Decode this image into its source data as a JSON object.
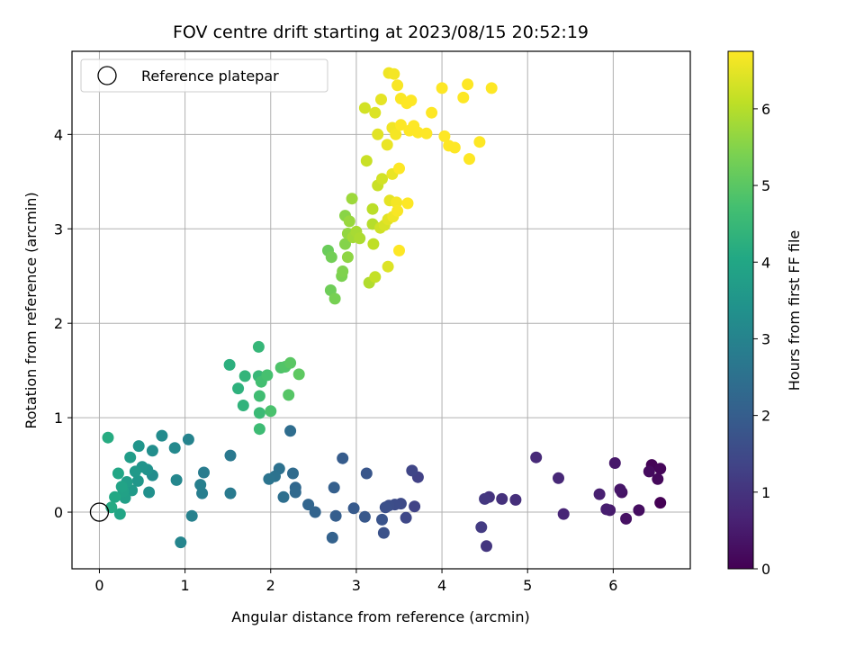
{
  "chart_data": {
    "type": "scatter",
    "title": "FOV centre drift starting at 2023/08/15 20:52:19",
    "xlabel": "Angular distance from reference (arcmin)",
    "ylabel": "Rotation from reference (arcmin)",
    "xlim": [
      -0.32,
      6.9
    ],
    "ylim": [
      -0.6,
      4.88
    ],
    "xticks": [
      0,
      1,
      2,
      3,
      4,
      5,
      6
    ],
    "yticks": [
      0,
      1,
      2,
      3,
      4
    ],
    "grid": true,
    "legend": {
      "placement": "top-left",
      "entries": [
        "Reference platepar"
      ]
    },
    "reference_point": {
      "x": 0,
      "y": 0
    },
    "colorbar": {
      "label": "Hours from first FF file",
      "range": [
        0,
        6.75
      ],
      "ticks": [
        0,
        1,
        2,
        3,
        4,
        5,
        6
      ],
      "colormap": "viridis"
    },
    "points": [
      [
        6.55,
        0.1,
        0.0
      ],
      [
        6.45,
        0.5,
        0.05
      ],
      [
        6.55,
        0.46,
        0.1
      ],
      [
        6.52,
        0.35,
        0.15
      ],
      [
        6.42,
        0.43,
        0.2
      ],
      [
        6.3,
        0.02,
        0.25
      ],
      [
        6.15,
        -0.07,
        0.3
      ],
      [
        6.1,
        0.21,
        0.35
      ],
      [
        6.08,
        0.24,
        0.4
      ],
      [
        6.02,
        0.52,
        0.45
      ],
      [
        5.96,
        0.02,
        0.5
      ],
      [
        5.92,
        0.03,
        0.55
      ],
      [
        5.84,
        0.19,
        0.6
      ],
      [
        5.42,
        -0.02,
        0.7
      ],
      [
        5.36,
        0.36,
        0.75
      ],
      [
        5.1,
        0.58,
        0.8
      ],
      [
        4.86,
        0.13,
        0.9
      ],
      [
        4.7,
        0.14,
        0.95
      ],
      [
        4.55,
        0.16,
        1.0
      ],
      [
        4.52,
        -0.36,
        1.05
      ],
      [
        4.5,
        0.14,
        1.1
      ],
      [
        4.46,
        -0.16,
        1.15
      ],
      [
        3.72,
        0.37,
        1.3
      ],
      [
        3.68,
        0.06,
        1.35
      ],
      [
        3.65,
        0.44,
        1.4
      ],
      [
        3.58,
        -0.06,
        1.45
      ],
      [
        3.52,
        0.09,
        1.5
      ],
      [
        3.45,
        0.08,
        1.55
      ],
      [
        3.38,
        0.07,
        1.6
      ],
      [
        3.34,
        0.05,
        1.65
      ],
      [
        3.32,
        -0.22,
        1.7
      ],
      [
        3.3,
        -0.08,
        1.75
      ],
      [
        3.12,
        0.41,
        1.8
      ],
      [
        3.1,
        -0.05,
        1.85
      ],
      [
        2.97,
        0.04,
        1.9
      ],
      [
        2.84,
        0.57,
        1.95
      ],
      [
        2.76,
        -0.04,
        2.0
      ],
      [
        2.74,
        0.26,
        2.05
      ],
      [
        2.72,
        -0.27,
        2.1
      ],
      [
        2.52,
        0.0,
        2.15
      ],
      [
        2.44,
        0.08,
        2.2
      ],
      [
        2.29,
        0.26,
        2.25
      ],
      [
        2.29,
        0.21,
        2.3
      ],
      [
        2.26,
        0.41,
        2.35
      ],
      [
        2.23,
        0.86,
        2.4
      ],
      [
        2.15,
        0.16,
        2.45
      ],
      [
        2.1,
        0.46,
        2.5
      ],
      [
        2.05,
        0.38,
        2.55
      ],
      [
        1.98,
        0.35,
        2.6
      ],
      [
        1.53,
        0.6,
        2.7
      ],
      [
        1.53,
        0.2,
        2.75
      ],
      [
        1.22,
        0.42,
        2.8
      ],
      [
        1.2,
        0.2,
        2.85
      ],
      [
        1.18,
        0.29,
        2.9
      ],
      [
        1.08,
        -0.04,
        2.95
      ],
      [
        1.04,
        0.77,
        3.0
      ],
      [
        0.95,
        -0.32,
        3.05
      ],
      [
        0.9,
        0.34,
        3.1
      ],
      [
        0.88,
        0.68,
        3.15
      ],
      [
        0.73,
        0.81,
        3.2
      ],
      [
        0.62,
        0.39,
        3.25
      ],
      [
        0.62,
        0.65,
        3.3
      ],
      [
        0.58,
        0.21,
        3.35
      ],
      [
        0.56,
        0.45,
        3.4
      ],
      [
        0.5,
        0.48,
        3.45
      ],
      [
        0.46,
        0.7,
        3.5
      ],
      [
        0.45,
        0.33,
        3.55
      ],
      [
        0.42,
        0.43,
        3.6
      ],
      [
        0.38,
        0.23,
        3.65
      ],
      [
        0.36,
        0.58,
        3.7
      ],
      [
        0.32,
        0.32,
        3.75
      ],
      [
        0.3,
        0.15,
        3.8
      ],
      [
        0.28,
        0.22,
        3.85
      ],
      [
        0.26,
        0.27,
        3.9
      ],
      [
        0.24,
        -0.02,
        3.95
      ],
      [
        0.22,
        0.41,
        4.0
      ],
      [
        0.18,
        0.16,
        4.05
      ],
      [
        0.14,
        0.05,
        4.1
      ],
      [
        0.1,
        0.79,
        4.15
      ],
      [
        1.52,
        1.56,
        4.25
      ],
      [
        1.62,
        1.31,
        4.3
      ],
      [
        1.68,
        1.13,
        4.35
      ],
      [
        1.7,
        1.44,
        4.4
      ],
      [
        1.86,
        1.75,
        4.45
      ],
      [
        1.86,
        1.44,
        4.5
      ],
      [
        1.87,
        1.05,
        4.55
      ],
      [
        1.87,
        0.88,
        4.6
      ],
      [
        1.87,
        1.23,
        4.65
      ],
      [
        1.89,
        1.38,
        4.7
      ],
      [
        1.96,
        1.45,
        4.75
      ],
      [
        2.0,
        1.07,
        4.8
      ],
      [
        2.12,
        1.53,
        4.85
      ],
      [
        2.17,
        1.54,
        4.9
      ],
      [
        2.21,
        1.24,
        4.95
      ],
      [
        2.23,
        1.58,
        5.0
      ],
      [
        2.33,
        1.46,
        5.05
      ],
      [
        2.67,
        2.77,
        5.2
      ],
      [
        2.7,
        2.35,
        5.25
      ],
      [
        2.71,
        2.7,
        5.3
      ],
      [
        2.75,
        2.26,
        5.35
      ],
      [
        2.83,
        2.5,
        5.4
      ],
      [
        2.84,
        2.55,
        5.45
      ],
      [
        2.87,
        2.84,
        5.5
      ],
      [
        2.87,
        3.14,
        5.55
      ],
      [
        2.9,
        2.7,
        5.6
      ],
      [
        2.9,
        2.95,
        5.65
      ],
      [
        2.92,
        3.08,
        5.7
      ],
      [
        2.95,
        3.32,
        5.75
      ],
      [
        2.96,
        2.91,
        5.8
      ],
      [
        3.0,
        2.97,
        5.85
      ],
      [
        3.04,
        2.9,
        5.9
      ],
      [
        3.15,
        2.43,
        5.95
      ],
      [
        3.19,
        3.05,
        6.0
      ],
      [
        3.19,
        3.21,
        6.05
      ],
      [
        3.2,
        2.84,
        6.1
      ],
      [
        3.22,
        2.49,
        6.15
      ],
      [
        3.25,
        3.46,
        6.2
      ],
      [
        3.28,
        3.01,
        6.25
      ],
      [
        3.3,
        3.53,
        6.3
      ],
      [
        3.33,
        3.04,
        6.35
      ],
      [
        3.37,
        2.6,
        6.4
      ],
      [
        3.37,
        3.1,
        6.45
      ],
      [
        3.39,
        3.3,
        6.5
      ],
      [
        3.42,
        3.58,
        6.55
      ],
      [
        3.43,
        3.13,
        6.6
      ],
      [
        3.47,
        3.28,
        6.65
      ],
      [
        3.48,
        3.19,
        6.7
      ],
      [
        3.5,
        2.77,
        6.75
      ],
      [
        3.5,
        3.64,
        6.8
      ],
      [
        3.6,
        3.27,
        6.85
      ],
      [
        3.12,
        3.72,
        6.2
      ],
      [
        3.1,
        4.28,
        6.3
      ],
      [
        3.22,
        4.23,
        6.4
      ],
      [
        3.25,
        4.0,
        6.45
      ],
      [
        3.29,
        4.37,
        6.5
      ],
      [
        3.36,
        3.89,
        6.55
      ],
      [
        3.38,
        4.65,
        6.6
      ],
      [
        3.42,
        4.07,
        6.62
      ],
      [
        3.44,
        4.64,
        6.65
      ],
      [
        3.46,
        4.0,
        6.67
      ],
      [
        3.48,
        4.52,
        6.7
      ],
      [
        3.52,
        4.38,
        6.72
      ],
      [
        3.52,
        4.1,
        6.74
      ],
      [
        3.59,
        4.33,
        6.75
      ],
      [
        3.62,
        4.04,
        6.76
      ],
      [
        3.64,
        4.36,
        6.77
      ],
      [
        3.67,
        4.09,
        6.78
      ],
      [
        3.72,
        4.02,
        6.8
      ],
      [
        3.82,
        4.01,
        6.82
      ],
      [
        3.88,
        4.23,
        6.84
      ],
      [
        4.0,
        4.49,
        6.85
      ],
      [
        4.03,
        3.98,
        6.86
      ],
      [
        4.08,
        3.88,
        6.87
      ],
      [
        4.15,
        3.86,
        6.88
      ],
      [
        4.25,
        4.39,
        6.89
      ],
      [
        4.3,
        4.53,
        6.9
      ],
      [
        4.32,
        3.74,
        6.9
      ],
      [
        4.44,
        3.92,
        6.9
      ],
      [
        4.58,
        4.49,
        6.9
      ]
    ]
  }
}
